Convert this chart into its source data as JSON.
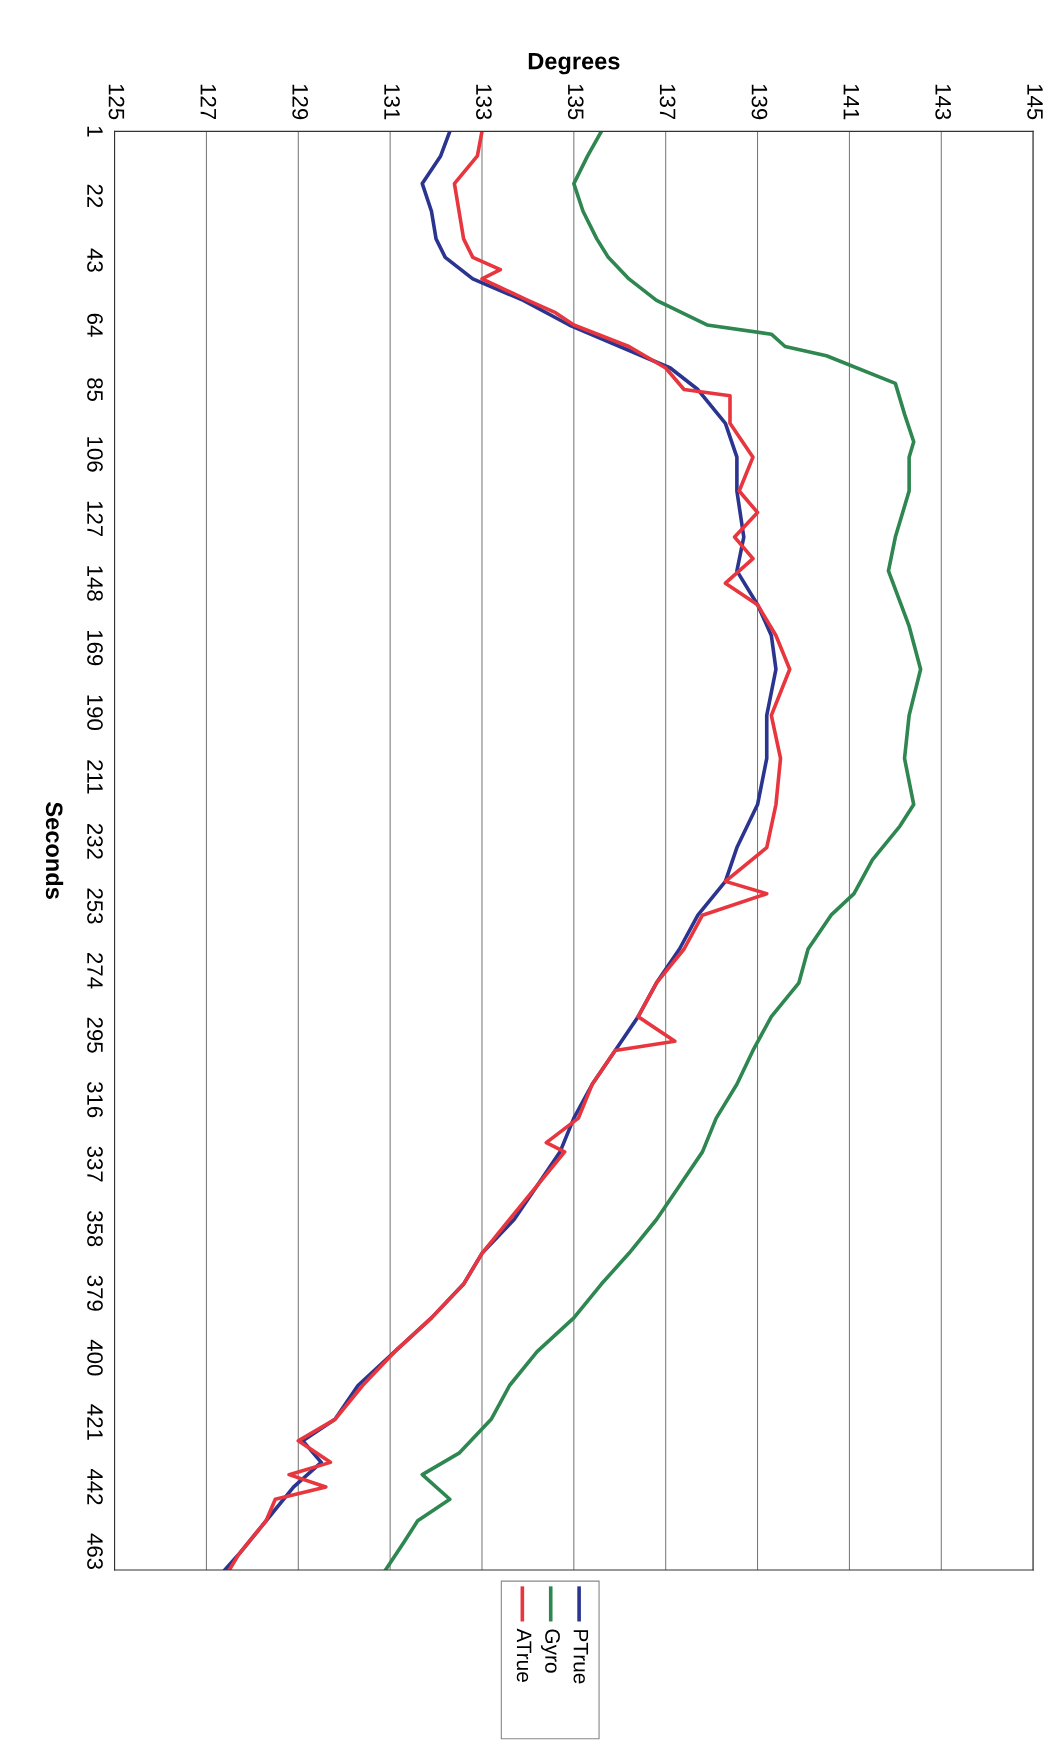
{
  "chart_data": {
    "type": "line",
    "xlabel": "Degrees",
    "ylabel": "Seconds",
    "xlim": [
      125,
      145
    ],
    "xticks": [
      125,
      127,
      129,
      131,
      133,
      135,
      137,
      139,
      141,
      143,
      145
    ],
    "ylim": [
      469,
      1
    ],
    "yticks": [
      1,
      22,
      43,
      64,
      85,
      106,
      127,
      148,
      169,
      190,
      211,
      232,
      253,
      274,
      295,
      316,
      337,
      358,
      379,
      400,
      421,
      442,
      463
    ],
    "grid": "x",
    "legend": "bottom",
    "marker": "none",
    "line_style": "solid",
    "series": [
      {
        "name": "PTrue",
        "color": "#2b3590",
        "values": [
          1,
          9,
          18,
          27,
          36,
          42,
          49,
          56,
          64,
          71,
          78,
          85,
          96,
          107,
          118,
          133,
          144,
          155,
          165,
          176,
          191,
          205,
          220,
          234,
          245,
          256,
          267,
          278,
          289,
          300,
          311,
          322,
          333,
          344,
          355,
          366,
          376,
          387,
          398,
          409,
          420,
          427,
          434,
          442,
          453,
          464,
          469
        ],
        "x": [
          132.3,
          132.1,
          131.7,
          131.9,
          132.0,
          132.2,
          132.8,
          133.9,
          134.9,
          136.0,
          137.1,
          137.7,
          138.3,
          138.55,
          138.55,
          138.7,
          138.55,
          139.0,
          139.3,
          139.4,
          139.2,
          139.2,
          139.0,
          138.55,
          138.3,
          137.7,
          137.3,
          136.8,
          136.4,
          135.9,
          135.4,
          135.0,
          134.7,
          134.2,
          133.7,
          133.0,
          132.6,
          131.9,
          131.1,
          130.3,
          129.8,
          129.1,
          129.5,
          128.9,
          128.3,
          127.7,
          127.4
        ]
      },
      {
        "name": "Gyro",
        "color": "#2e8650",
        "values": [
          1,
          9,
          18,
          27,
          36,
          42,
          49,
          56,
          64,
          67,
          71,
          74,
          83,
          93,
          102,
          107,
          118,
          133,
          144,
          162,
          176,
          191,
          205,
          220,
          227,
          238,
          249,
          256,
          267,
          278,
          289,
          300,
          311,
          322,
          333,
          344,
          355,
          366,
          376,
          387,
          398,
          409,
          420,
          431,
          438,
          446,
          453,
          460,
          469
        ],
        "x": [
          135.6,
          135.3,
          135.0,
          135.2,
          135.5,
          135.75,
          136.2,
          136.8,
          137.9,
          139.3,
          139.6,
          140.5,
          142.0,
          142.2,
          142.4,
          142.3,
          142.3,
          142.0,
          141.85,
          142.3,
          142.55,
          142.3,
          142.2,
          142.4,
          142.1,
          141.5,
          141.1,
          140.6,
          140.1,
          139.9,
          139.3,
          138.9,
          138.55,
          138.1,
          137.8,
          137.3,
          136.8,
          136.2,
          135.6,
          135.0,
          134.2,
          133.6,
          133.2,
          132.5,
          131.7,
          132.3,
          131.6,
          131.3,
          130.9
        ]
      },
      {
        "name": "ATrue",
        "color": "#e8363f",
        "values": [
          1,
          9,
          18,
          27,
          36,
          42,
          46,
          49,
          56,
          60,
          64,
          71,
          78,
          85,
          87,
          96,
          107,
          118,
          125,
          133,
          140,
          148,
          155,
          165,
          176,
          191,
          205,
          220,
          234,
          245,
          249,
          256,
          267,
          278,
          289,
          297,
          300,
          311,
          322,
          330,
          333,
          344,
          355,
          366,
          376,
          387,
          398,
          409,
          420,
          427,
          434,
          438,
          442,
          446,
          453,
          464,
          469
        ],
        "x": [
          133.0,
          132.9,
          132.4,
          132.5,
          132.6,
          132.8,
          133.4,
          133.0,
          134.0,
          134.6,
          135.0,
          136.2,
          137.0,
          137.4,
          138.4,
          138.4,
          138.9,
          138.6,
          139.0,
          138.5,
          138.9,
          138.3,
          139.0,
          139.4,
          139.7,
          139.3,
          139.5,
          139.4,
          139.2,
          138.3,
          139.2,
          137.8,
          137.4,
          136.8,
          136.4,
          137.2,
          135.9,
          135.4,
          135.1,
          134.4,
          134.8,
          134.2,
          133.6,
          133.0,
          132.6,
          131.9,
          131.1,
          130.4,
          129.8,
          129.0,
          129.7,
          128.8,
          129.6,
          128.5,
          128.3,
          127.7,
          127.5
        ]
      }
    ]
  }
}
